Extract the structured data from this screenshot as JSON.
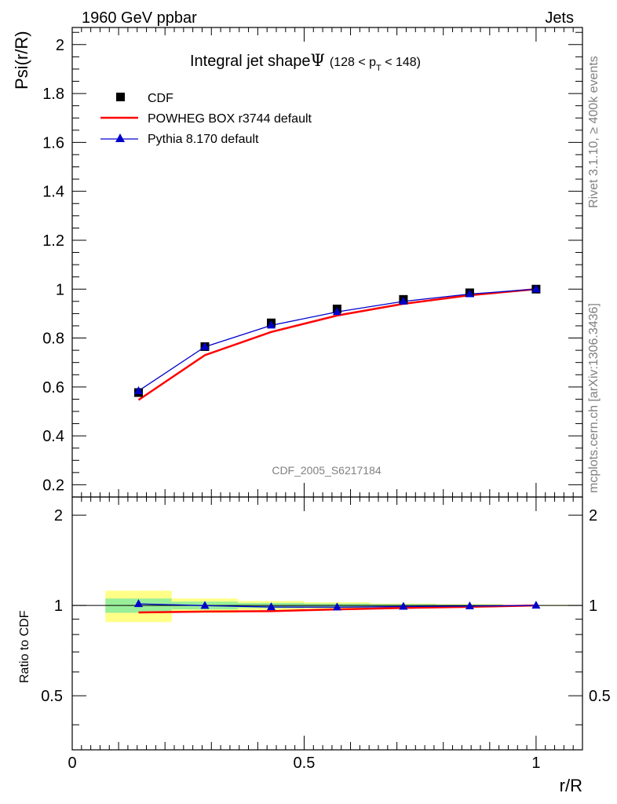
{
  "header": {
    "left": "1960 GeV ppbar",
    "right": "Jets"
  },
  "side_labels": {
    "top": "Rivet 3.1.10, ≥ 400k events",
    "bottom": "mcplots.cern.ch [arXiv:1306.3436]"
  },
  "colors": {
    "cdf": "#000000",
    "powheg": "#ff0000",
    "pythia": "#0000cc",
    "band_inner": "#99ee99",
    "band_outer": "#ffff88"
  },
  "chart_data": {
    "type": "line",
    "title": "Integral jet shape",
    "title_symbol": "Ψ",
    "title_range": {
      "pre": "(128 < p",
      "sub": "T",
      "post": " < 148)"
    },
    "watermark": "CDF_2005_S6217184",
    "xlabel": "r/R",
    "ylabel": "Psi(r/R)",
    "ratio_ylabel": "Ratio to CDF",
    "xlim": [
      0,
      1.1
    ],
    "ylim": [
      0.15,
      2.07
    ],
    "ratio_ylim": [
      0.33,
      2.3
    ],
    "x_ticks": [
      {
        "v": 0,
        "label": "0"
      },
      {
        "v": 0.5,
        "label": "0.5"
      },
      {
        "v": 1,
        "label": "1"
      }
    ],
    "y_ticks": [
      {
        "v": 0.2,
        "label": "0.2"
      },
      {
        "v": 0.4,
        "label": "0.4"
      },
      {
        "v": 0.6,
        "label": "0.6"
      },
      {
        "v": 0.8,
        "label": "0.8"
      },
      {
        "v": 1.0,
        "label": "1"
      },
      {
        "v": 1.2,
        "label": "1.2"
      },
      {
        "v": 1.4,
        "label": "1.4"
      },
      {
        "v": 1.6,
        "label": "1.6"
      },
      {
        "v": 1.8,
        "label": "1.8"
      },
      {
        "v": 2.0,
        "label": "2"
      }
    ],
    "ratio_ticks": [
      {
        "v": 0.5,
        "label": "0.5"
      },
      {
        "v": 1,
        "label": "1"
      },
      {
        "v": 2,
        "label": "2"
      }
    ],
    "x": [
      0.143,
      0.286,
      0.429,
      0.571,
      0.714,
      0.857,
      1.0
    ],
    "series": [
      {
        "name": "CDF",
        "values": [
          0.577,
          0.765,
          0.862,
          0.919,
          0.958,
          0.985,
          1.0
        ]
      },
      {
        "name": "POWHEG BOX r3744 default",
        "values": [
          0.547,
          0.73,
          0.825,
          0.892,
          0.94,
          0.975,
          1.0
        ]
      },
      {
        "name": "Pythia 8.170 default",
        "values": [
          0.584,
          0.764,
          0.852,
          0.907,
          0.95,
          0.98,
          1.0
        ]
      }
    ],
    "band_edges": [
      0.0715,
      0.2145,
      0.357,
      0.5,
      0.6425,
      0.785,
      0.9285,
      1.0715
    ],
    "band_inner_rel": [
      0.055,
      0.03,
      0.02,
      0.015,
      0.01,
      0.006,
      0.002
    ],
    "band_outer_rel": [
      0.12,
      0.055,
      0.035,
      0.025,
      0.015,
      0.01,
      0.004
    ],
    "legend_position": "top-left",
    "grid": false
  }
}
